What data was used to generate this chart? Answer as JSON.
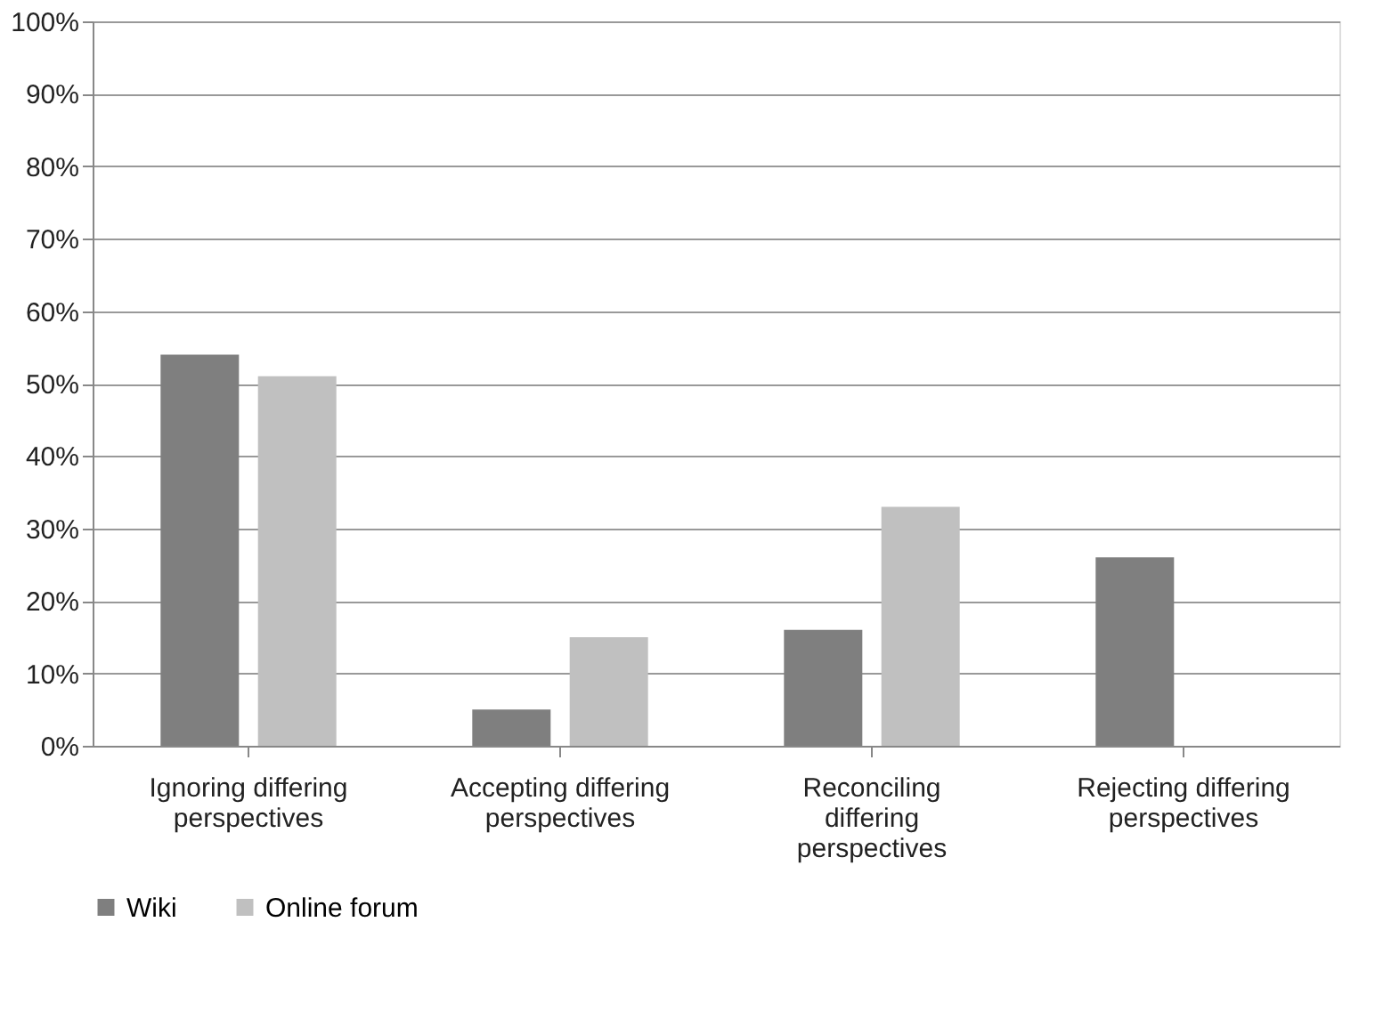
{
  "chart_data": {
    "type": "bar",
    "categories": [
      "Ignoring differing perspectives",
      "Accepting differing perspectives",
      "Reconciling differing perspectives",
      "Rejecting differing perspectives"
    ],
    "series": [
      {
        "name": "Wiki",
        "color": "#7f7f7f",
        "values": [
          54,
          5,
          16,
          26
        ]
      },
      {
        "name": "Online forum",
        "color": "#c0c0c0",
        "values": [
          51,
          15,
          33,
          0
        ]
      }
    ],
    "ylim": [
      0,
      100
    ],
    "yticks": [
      {
        "value": 0,
        "label": "0%"
      },
      {
        "value": 10,
        "label": "10%"
      },
      {
        "value": 20,
        "label": "20%"
      },
      {
        "value": 30,
        "label": "30%"
      },
      {
        "value": 40,
        "label": "40%"
      },
      {
        "value": 50,
        "label": "50%"
      },
      {
        "value": 60,
        "label": "60%"
      },
      {
        "value": 70,
        "label": "70%"
      },
      {
        "value": 80,
        "label": "80%"
      },
      {
        "value": 90,
        "label": "90%"
      },
      {
        "value": 100,
        "label": "100%"
      }
    ],
    "grid": "y",
    "legend": "bottom"
  }
}
